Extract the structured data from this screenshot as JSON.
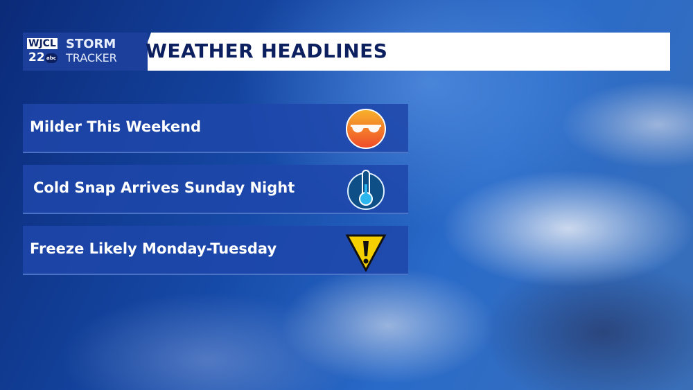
{
  "logo": {
    "station": "WJCL",
    "channel": "22",
    "network": "abc",
    "brand_line1": "STORM",
    "brand_line2": "TRACKER"
  },
  "header": {
    "title": "WEATHER HEADLINES"
  },
  "headlines": [
    {
      "text": "Milder This Weekend",
      "icon": "sunglasses-sun-icon"
    },
    {
      "text": "Cold Snap Arrives Sunday Night",
      "icon": "thermometer-icon"
    },
    {
      "text": "Freeze Likely Monday-Tuesday",
      "icon": "warning-triangle-icon"
    }
  ]
}
